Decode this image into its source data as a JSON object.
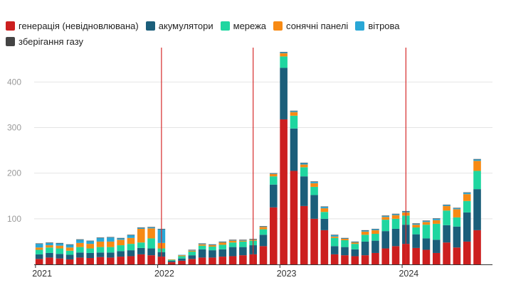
{
  "chart_data": {
    "type": "bar",
    "stacked": true,
    "title": "",
    "xlabel": "",
    "ylabel": "",
    "ylim": [
      0,
      480
    ],
    "y_ticks": [
      100,
      200,
      300,
      400
    ],
    "grid": "horizontal",
    "legend_position": "top-left",
    "x_tick_labels": [
      {
        "label": "2021",
        "index": 0
      },
      {
        "label": "2022",
        "index": 12
      },
      {
        "label": "2023",
        "index": 24
      },
      {
        "label": "2024",
        "index": 36
      }
    ],
    "vertical_markers": [
      12.5,
      21.5,
      36.5
    ],
    "categories": [
      "2021-01",
      "2021-02",
      "2021-03",
      "2021-04",
      "2021-05",
      "2021-06",
      "2021-07",
      "2021-08",
      "2021-09",
      "2021-10",
      "2021-11",
      "2021-12",
      "2022-01",
      "2022-02",
      "2022-03",
      "2022-04",
      "2022-05",
      "2022-06",
      "2022-07",
      "2022-08",
      "2022-09",
      "2022-10",
      "2022-11",
      "2022-12",
      "2023-01",
      "2023-02",
      "2023-03",
      "2023-04",
      "2023-05",
      "2023-06",
      "2023-07",
      "2023-08",
      "2023-09",
      "2023-10",
      "2023-11",
      "2023-12",
      "2024-01",
      "2024-02",
      "2024-03",
      "2024-04",
      "2024-05",
      "2024-06",
      "2024-07",
      "2024-08",
      "2024-09"
    ],
    "series": [
      {
        "name": "генерація (невідновлювана)",
        "color": "#cc1f1f",
        "values": [
          12,
          15,
          13,
          11,
          15,
          14,
          16,
          15,
          17,
          18,
          22,
          20,
          17,
          5,
          8,
          12,
          15,
          15,
          17,
          18,
          20,
          22,
          40,
          125,
          318,
          205,
          128,
          100,
          75,
          22,
          20,
          18,
          20,
          25,
          35,
          40,
          45,
          36,
          32,
          25,
          48,
          37,
          50,
          75,
          0
        ]
      },
      {
        "name": "акумулятори",
        "color": "#1b5e7a",
        "values": [
          10,
          10,
          10,
          10,
          11,
          11,
          10,
          11,
          12,
          13,
          14,
          15,
          10,
          3,
          5,
          8,
          18,
          16,
          16,
          20,
          18,
          20,
          25,
          50,
          113,
          93,
          65,
          52,
          25,
          18,
          18,
          15,
          30,
          27,
          38,
          38,
          42,
          30,
          25,
          29,
          38,
          46,
          64,
          90,
          0
        ]
      },
      {
        "name": "мережа",
        "color": "#1fd6a0",
        "values": [
          10,
          12,
          12,
          9,
          12,
          10,
          12,
          12,
          13,
          14,
          12,
          22,
          8,
          2,
          5,
          8,
          8,
          8,
          10,
          10,
          12,
          10,
          12,
          18,
          25,
          28,
          20,
          18,
          15,
          18,
          15,
          12,
          15,
          15,
          25,
          22,
          20,
          15,
          30,
          35,
          32,
          20,
          25,
          40,
          0
        ]
      },
      {
        "name": "сонячні панелі",
        "color": "#f78a14",
        "values": [
          5,
          5,
          6,
          7,
          9,
          10,
          12,
          12,
          12,
          13,
          30,
          22,
          12,
          1,
          2,
          2,
          3,
          3,
          5,
          4,
          2,
          2,
          5,
          5,
          7,
          8,
          6,
          8,
          8,
          3,
          3,
          3,
          7,
          8,
          6,
          8,
          7,
          6,
          6,
          8,
          10,
          18,
          15,
          22,
          0
        ]
      },
      {
        "name": "вітрова",
        "color": "#29a7d6",
        "values": [
          8,
          5,
          5,
          6,
          7,
          6,
          8,
          9,
          3,
          6,
          2,
          2,
          30,
          0,
          1,
          1,
          1,
          1,
          1,
          1,
          1,
          1,
          1,
          1,
          2,
          2,
          3,
          3,
          3,
          3,
          1,
          1,
          2,
          2,
          2,
          2,
          2,
          2,
          2,
          3,
          2,
          2,
          3,
          3,
          0
        ]
      },
      {
        "name": "зберігання газу",
        "color": "#444444",
        "values": [
          1,
          1,
          1,
          1,
          1,
          1,
          1,
          1,
          1,
          1,
          1,
          1,
          1,
          0,
          0,
          1,
          1,
          1,
          1,
          1,
          1,
          1,
          1,
          1,
          1,
          1,
          1,
          1,
          1,
          1,
          1,
          1,
          1,
          1,
          1,
          1,
          1,
          1,
          1,
          1,
          1,
          1,
          1,
          1,
          0
        ]
      }
    ]
  }
}
